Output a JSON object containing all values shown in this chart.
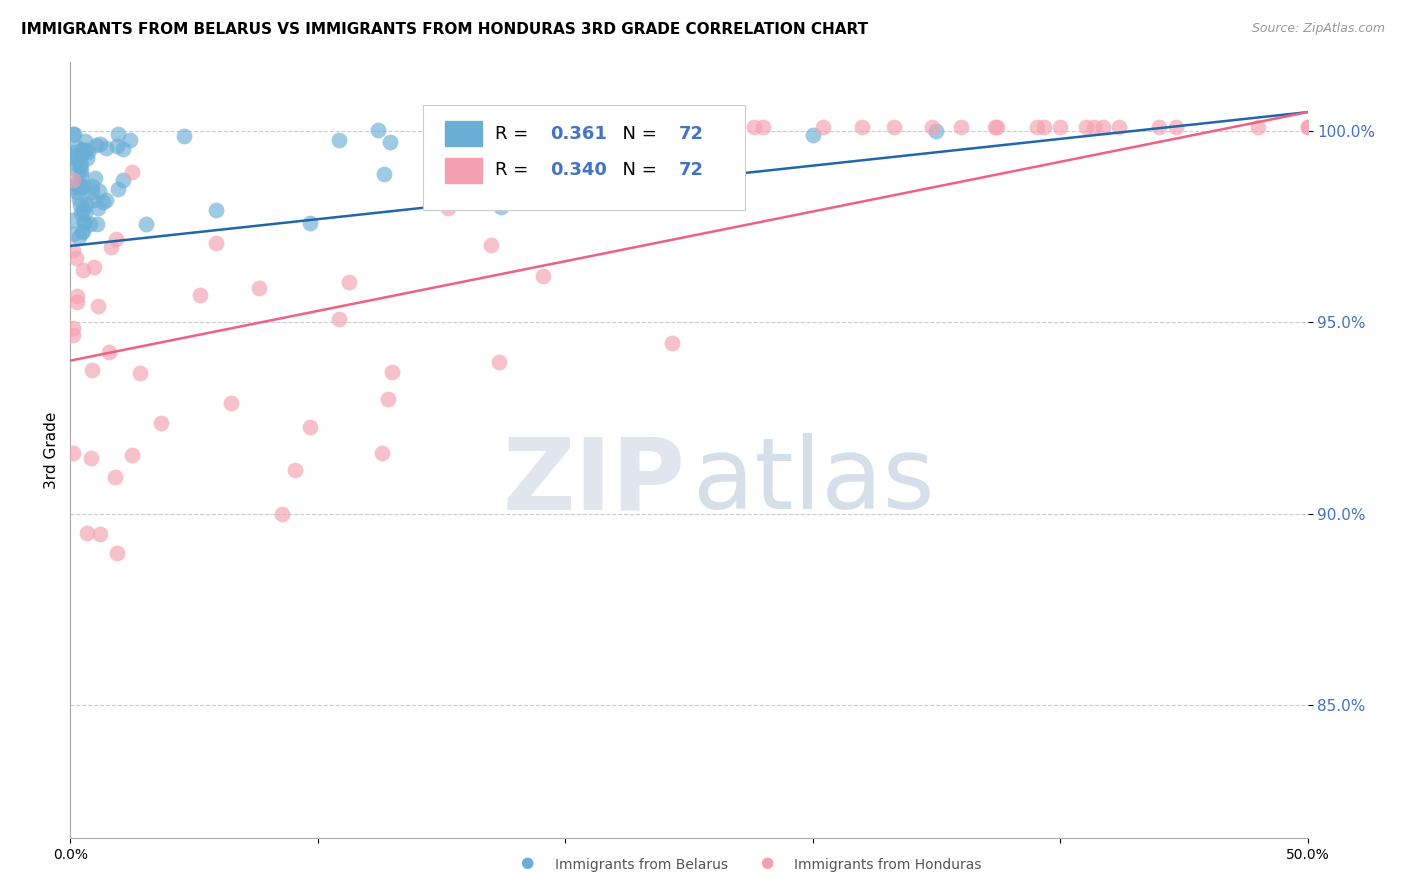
{
  "title": "IMMIGRANTS FROM BELARUS VS IMMIGRANTS FROM HONDURAS 3RD GRADE CORRELATION CHART",
  "source": "Source: ZipAtlas.com",
  "ylabel": "3rd Grade",
  "ytick_values": [
    1.0,
    0.95,
    0.9,
    0.85
  ],
  "ytick_labels": [
    "100.0%",
    "95.0%",
    "90.0%",
    "85.0%"
  ],
  "xlim": [
    0.0,
    0.5
  ],
  "ylim": [
    0.815,
    1.018
  ],
  "legend_r_belarus": "0.361",
  "legend_n_belarus": "72",
  "legend_r_honduras": "0.340",
  "legend_n_honduras": "72",
  "color_belarus": "#6aaed6",
  "color_honduras": "#f4a0b0",
  "color_line_belarus": "#2166ac",
  "color_line_honduras": "#f06080",
  "belarus_line_x": [
    0.0,
    0.5
  ],
  "belarus_line_y": [
    0.97,
    1.005
  ],
  "honduras_line_x": [
    0.0,
    0.5
  ],
  "honduras_line_y": [
    0.94,
    1.005
  ],
  "grid_color": "#cccccc",
  "spine_color": "#aaaaaa",
  "ytick_color": "#4472c4",
  "title_fontsize": 11,
  "source_fontsize": 9,
  "tick_fontsize": 10,
  "ylabel_fontsize": 11,
  "legend_fontsize": 13,
  "watermark_zip_color": "#c8d0e0",
  "watermark_atlas_color": "#a0b8d0"
}
